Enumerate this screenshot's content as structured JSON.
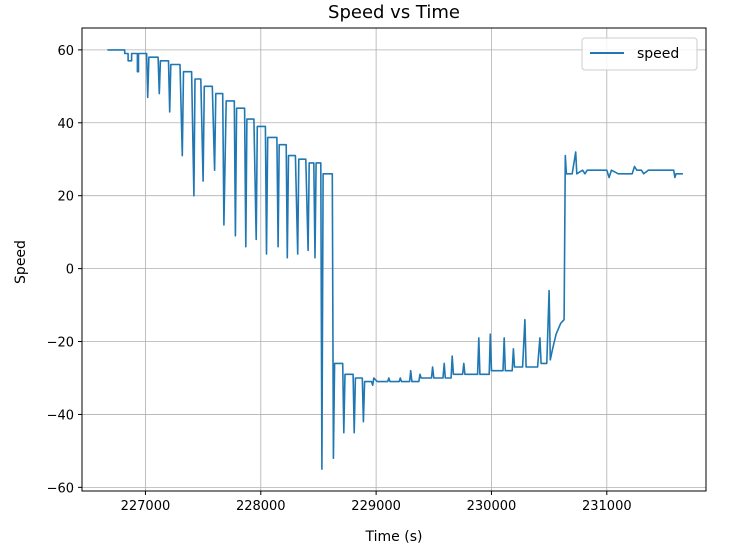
{
  "chart_data": {
    "type": "line",
    "title": "Speed vs Time",
    "xlabel": "Time (s)",
    "ylabel": "Speed",
    "xlim": [
      226450,
      231860
    ],
    "ylim": [
      -61,
      66
    ],
    "xticks": [
      227000,
      228000,
      229000,
      230000,
      231000
    ],
    "xtick_labels": [
      "227000",
      "228000",
      "229000",
      "230000",
      "231000"
    ],
    "yticks": [
      -60,
      -40,
      -20,
      0,
      20,
      40,
      60
    ],
    "ytick_labels": [
      "−60",
      "−40",
      "−20",
      "0",
      "20",
      "40",
      "60"
    ],
    "grid": true,
    "legend_position": "top-right",
    "colors": {
      "series": "#1f77b4",
      "grid": "#b0b0b0",
      "axes": "#000000"
    },
    "series": [
      {
        "name": "speed",
        "points": [
          [
            226670,
            60
          ],
          [
            226820,
            60
          ],
          [
            226820,
            59
          ],
          [
            226850,
            59
          ],
          [
            226850,
            57
          ],
          [
            226880,
            57
          ],
          [
            226880,
            59
          ],
          [
            226930,
            59
          ],
          [
            226930,
            54
          ],
          [
            226940,
            54
          ],
          [
            226940,
            59
          ],
          [
            227010,
            59
          ],
          [
            227020,
            47
          ],
          [
            227030,
            58
          ],
          [
            227110,
            58
          ],
          [
            227120,
            48
          ],
          [
            227130,
            57
          ],
          [
            227200,
            57
          ],
          [
            227210,
            43
          ],
          [
            227220,
            56
          ],
          [
            227300,
            56
          ],
          [
            227320,
            31
          ],
          [
            227330,
            54
          ],
          [
            227400,
            54
          ],
          [
            227420,
            20
          ],
          [
            227430,
            52
          ],
          [
            227480,
            52
          ],
          [
            227500,
            24
          ],
          [
            227510,
            50
          ],
          [
            227580,
            50
          ],
          [
            227600,
            27
          ],
          [
            227610,
            48
          ],
          [
            227670,
            48
          ],
          [
            227680,
            12
          ],
          [
            227700,
            46
          ],
          [
            227770,
            46
          ],
          [
            227780,
            9
          ],
          [
            227790,
            44
          ],
          [
            227860,
            44
          ],
          [
            227870,
            6
          ],
          [
            227880,
            41
          ],
          [
            227940,
            41
          ],
          [
            227960,
            8
          ],
          [
            227970,
            39
          ],
          [
            228040,
            39
          ],
          [
            228050,
            4
          ],
          [
            228060,
            36
          ],
          [
            228140,
            36
          ],
          [
            228150,
            6
          ],
          [
            228160,
            34
          ],
          [
            228220,
            34
          ],
          [
            228230,
            3
          ],
          [
            228240,
            31
          ],
          [
            228300,
            31
          ],
          [
            228320,
            4
          ],
          [
            228330,
            30
          ],
          [
            228390,
            30
          ],
          [
            228410,
            5
          ],
          [
            228420,
            29
          ],
          [
            228460,
            29
          ],
          [
            228470,
            3
          ],
          [
            228480,
            29
          ],
          [
            228520,
            29
          ],
          [
            228530,
            -55
          ],
          [
            228540,
            26
          ],
          [
            228620,
            26
          ],
          [
            228630,
            -52
          ],
          [
            228640,
            -26
          ],
          [
            228710,
            -26
          ],
          [
            228720,
            -45
          ],
          [
            228730,
            -29
          ],
          [
            228800,
            -29
          ],
          [
            228810,
            -45
          ],
          [
            228820,
            -30
          ],
          [
            228880,
            -30
          ],
          [
            228890,
            -42
          ],
          [
            228900,
            -31
          ],
          [
            228960,
            -31
          ],
          [
            228970,
            -32
          ],
          [
            228980,
            -30
          ],
          [
            229010,
            -31
          ],
          [
            229100,
            -31
          ],
          [
            229110,
            -30
          ],
          [
            229120,
            -31
          ],
          [
            229200,
            -31
          ],
          [
            229210,
            -30
          ],
          [
            229220,
            -31
          ],
          [
            229290,
            -31
          ],
          [
            229300,
            -28
          ],
          [
            229310,
            -31
          ],
          [
            229370,
            -31
          ],
          [
            229380,
            -29
          ],
          [
            229390,
            -30
          ],
          [
            229480,
            -30
          ],
          [
            229490,
            -27
          ],
          [
            229500,
            -30
          ],
          [
            229580,
            -30
          ],
          [
            229590,
            -26
          ],
          [
            229600,
            -30
          ],
          [
            229650,
            -30
          ],
          [
            229660,
            -24
          ],
          [
            229670,
            -29
          ],
          [
            229750,
            -29
          ],
          [
            229760,
            -26
          ],
          [
            229770,
            -29
          ],
          [
            229880,
            -29
          ],
          [
            229890,
            -19
          ],
          [
            229900,
            -29
          ],
          [
            229980,
            -29
          ],
          [
            229990,
            -18
          ],
          [
            230000,
            -28
          ],
          [
            230100,
            -28
          ],
          [
            230110,
            -19
          ],
          [
            230120,
            -28
          ],
          [
            230180,
            -28
          ],
          [
            230190,
            -22
          ],
          [
            230200,
            -27
          ],
          [
            230270,
            -27
          ],
          [
            230290,
            -14
          ],
          [
            230300,
            -27
          ],
          [
            230400,
            -27
          ],
          [
            230420,
            -19
          ],
          [
            230430,
            -26
          ],
          [
            230480,
            -26
          ],
          [
            230500,
            -6
          ],
          [
            230510,
            -25
          ],
          [
            230530,
            -22
          ],
          [
            230560,
            -18
          ],
          [
            230600,
            -15
          ],
          [
            230630,
            -14
          ],
          [
            230640,
            31
          ],
          [
            230650,
            26
          ],
          [
            230700,
            26
          ],
          [
            230730,
            32
          ],
          [
            230740,
            26
          ],
          [
            230790,
            27
          ],
          [
            230810,
            26
          ],
          [
            230830,
            27
          ],
          [
            231000,
            27
          ],
          [
            231020,
            25
          ],
          [
            231040,
            27
          ],
          [
            231100,
            26
          ],
          [
            231220,
            26
          ],
          [
            231240,
            28
          ],
          [
            231260,
            27
          ],
          [
            231300,
            27
          ],
          [
            231320,
            26
          ],
          [
            231360,
            27
          ],
          [
            231580,
            27
          ],
          [
            231590,
            25
          ],
          [
            231600,
            26
          ],
          [
            231660,
            26
          ]
        ]
      }
    ]
  }
}
